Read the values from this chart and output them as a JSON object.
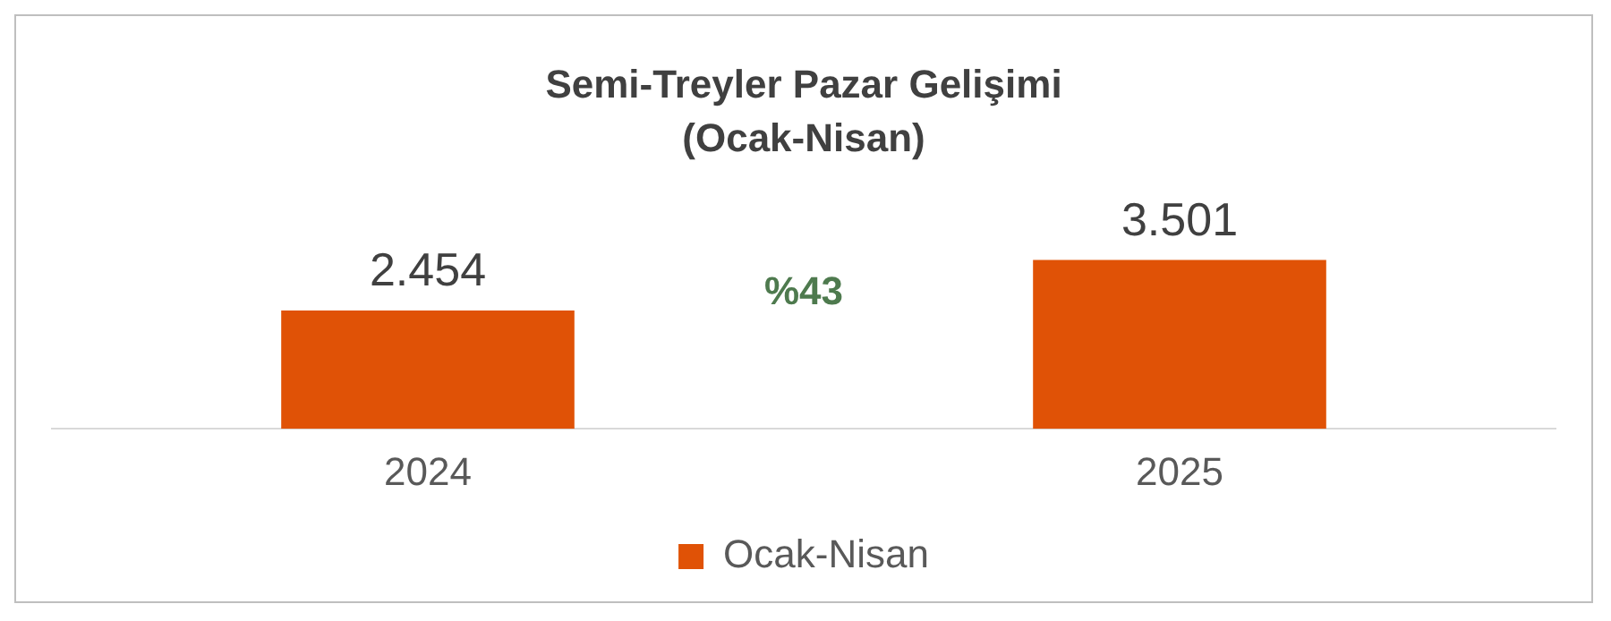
{
  "chart_data": {
    "type": "bar",
    "title": "Semi-Treyler Pazar Gelişimi",
    "subtitle": "(Ocak-Nisan)",
    "categories": [
      "2024",
      "2025"
    ],
    "series": [
      {
        "name": "Ocak-Nisan",
        "color": "#e05206",
        "values": [
          2454,
          3501
        ],
        "value_labels": [
          "2.454",
          "3.501"
        ]
      }
    ],
    "annotations": [
      "%43"
    ],
    "legend": "bottom",
    "grid": false
  }
}
